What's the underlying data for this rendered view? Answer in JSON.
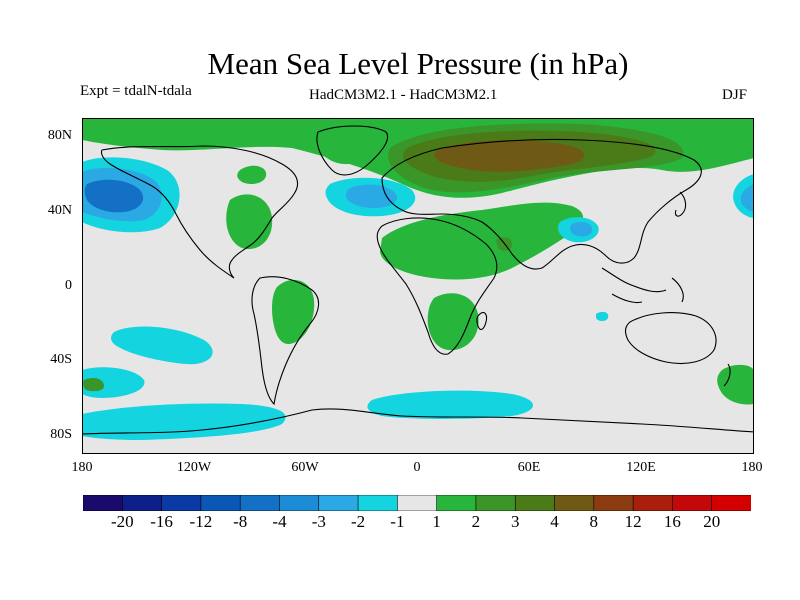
{
  "title": "Mean Sea Level Pressure (in hPa)",
  "experiment_label": "Expt = tdalN-tdala",
  "models_label": "HadCM3M2.1 - HadCM3M2.1",
  "season_label": "DJF",
  "axes": {
    "lat_ticks": [
      "80N",
      "40N",
      "0",
      "40S",
      "80S"
    ],
    "lon_ticks": [
      "180",
      "120W",
      "60W",
      "0",
      "60E",
      "120E",
      "180"
    ],
    "lon_range": [
      -180,
      180
    ],
    "lat_range": [
      -90,
      90
    ]
  },
  "colorbar": {
    "labels": [
      "-20",
      "-16",
      "-12",
      "-8",
      "-4",
      "-3",
      "-2",
      "-1",
      "1",
      "2",
      "3",
      "4",
      "8",
      "12",
      "16",
      "20"
    ],
    "colors": [
      "#1a0a6b",
      "#0f1f8a",
      "#0a3aa3",
      "#0a57b5",
      "#1470c4",
      "#1c8cd6",
      "#2aa9e4",
      "#14d4e0",
      "#e6e6e6",
      "#27b53c",
      "#3a9628",
      "#4b7a18",
      "#6e5a14",
      "#8a3c10",
      "#a8200c",
      "#c4080a",
      "#d40000"
    ]
  },
  "map": {
    "background_color": "#e6e6e6",
    "ocean_land_outline_color": "#000000"
  }
}
